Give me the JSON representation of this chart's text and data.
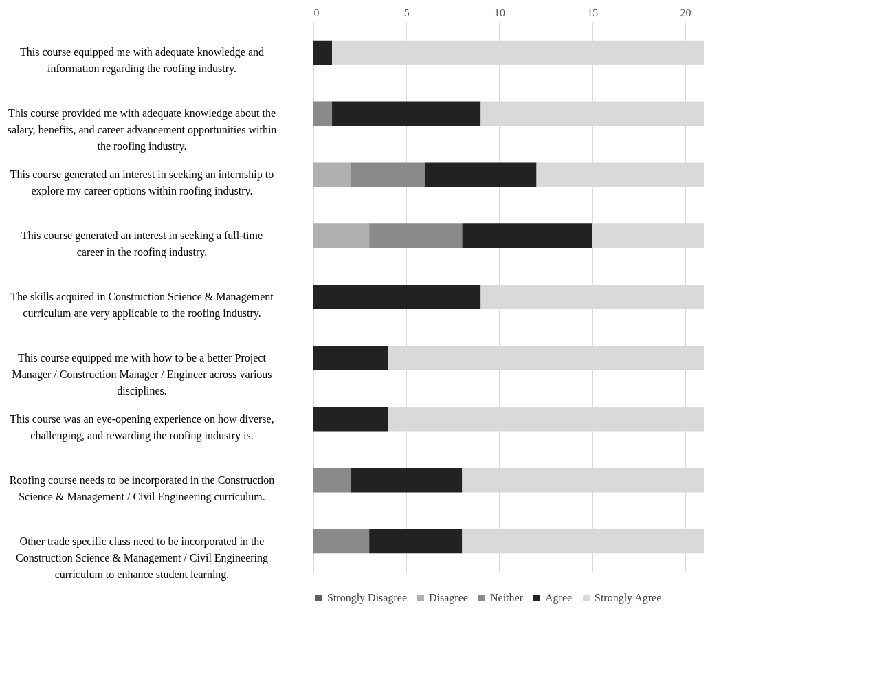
{
  "chart_data": {
    "type": "bar",
    "orientation": "horizontal",
    "stacked": true,
    "categories": [
      "This course equipped me with adequate knowledge and information regarding the roofing industry.",
      "This course provided me with adequate knowledge about the salary, benefits, and career advancement opportunities within the roofing industry.",
      "This course generated an interest in seeking an internship to explore my career options within roofing industry.",
      "This course generated an interest in seeking a full-time career in the roofing industry.",
      "The skills acquired in Construction Science & Management curriculum are very applicable to the roofing industry.",
      "This course equipped me with how to be a better Project Manager / Construction Manager / Engineer across various disciplines.",
      "This course was an eye-opening experience on how diverse, challenging, and rewarding the roofing industry is.",
      "Roofing course needs to be incorporated in the Construction Science & Management / Civil Engineering curriculum.",
      "Other trade specific  class need to be incorporated in the Construction Science & Management / Civil Engineering curriculum to enhance student learning."
    ],
    "series": [
      {
        "name": "Strongly Disagree",
        "color": "#5f5f5f",
        "values": [
          0,
          0,
          0,
          0,
          0,
          0,
          0,
          0,
          0
        ]
      },
      {
        "name": "Disagree",
        "color": "#b0b0b0",
        "values": [
          0,
          0,
          2,
          3,
          0,
          0,
          0,
          0,
          0
        ]
      },
      {
        "name": "Neither",
        "color": "#8a8a8a",
        "values": [
          0,
          1,
          4,
          5,
          0,
          0,
          0,
          2,
          3
        ]
      },
      {
        "name": "Agree",
        "color": "#222222",
        "values": [
          1,
          8,
          6,
          7,
          9,
          4,
          4,
          6,
          5
        ]
      },
      {
        "name": "Strongly Agree",
        "color": "#d9d9d9",
        "values": [
          20,
          12,
          9,
          6,
          12,
          17,
          17,
          13,
          13
        ]
      }
    ],
    "xlim": [
      0,
      21
    ],
    "xticks": [
      0,
      5,
      10,
      15,
      20
    ],
    "grid": "x",
    "legend": "bottom"
  }
}
